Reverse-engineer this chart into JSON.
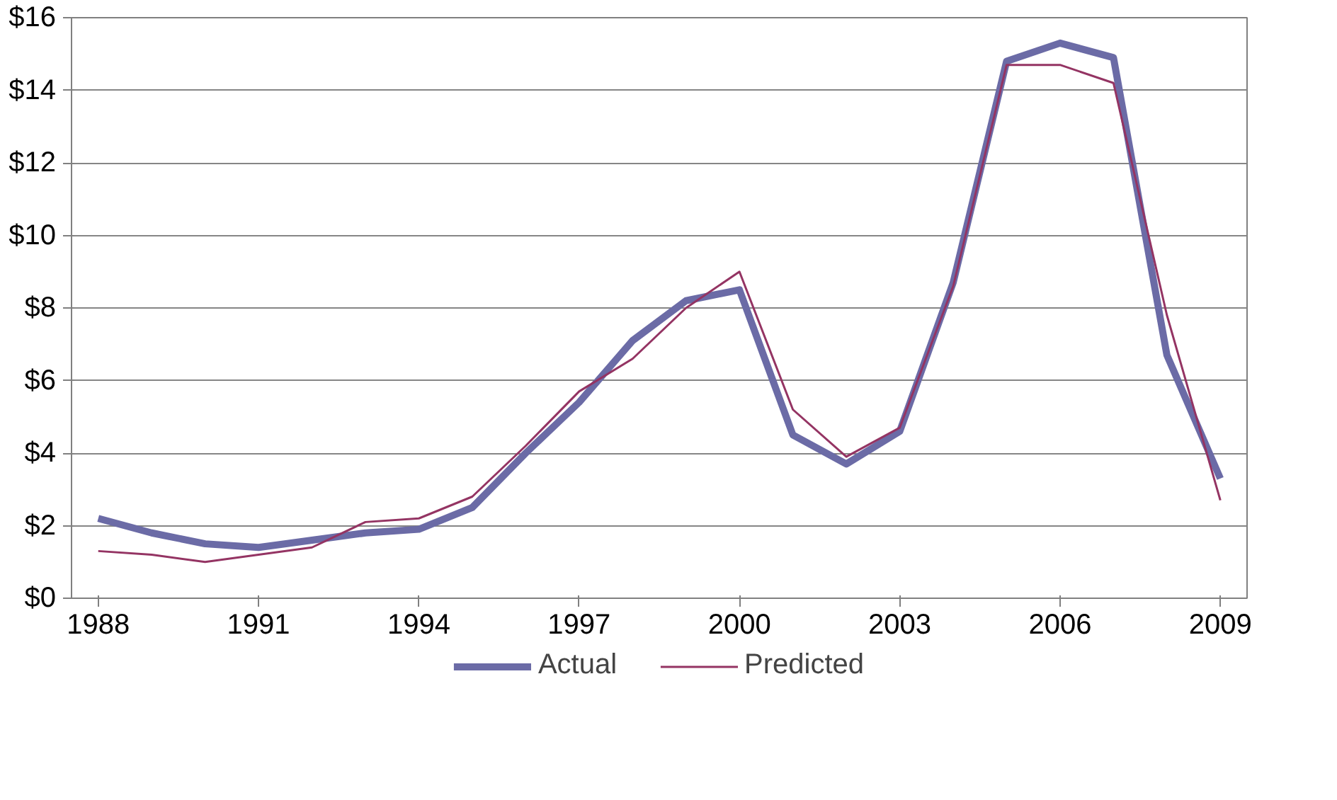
{
  "chart_data": {
    "type": "line",
    "x": [
      1988,
      1989,
      1990,
      1991,
      1992,
      1993,
      1994,
      1995,
      1996,
      1997,
      1998,
      1999,
      2000,
      2001,
      2002,
      2003,
      2004,
      2005,
      2006,
      2007,
      2008,
      2009
    ],
    "series": [
      {
        "name": "Actual",
        "color": "#6b6ba6",
        "values": [
          2.2,
          1.8,
          1.5,
          1.4,
          1.6,
          1.8,
          1.9,
          2.5,
          4.0,
          5.4,
          7.1,
          8.2,
          8.5,
          4.5,
          3.7,
          4.6,
          8.7,
          14.8,
          15.3,
          14.9,
          6.7,
          3.3
        ]
      },
      {
        "name": "Predicted",
        "color": "#943463",
        "values": [
          1.3,
          1.2,
          1.0,
          1.2,
          1.4,
          2.1,
          2.2,
          2.8,
          4.2,
          5.7,
          6.6,
          8.0,
          9.0,
          5.2,
          3.9,
          4.7,
          8.6,
          14.7,
          14.7,
          14.2,
          7.8,
          2.7
        ]
      }
    ],
    "xlim": [
      1987.5,
      2009.5
    ],
    "xticks": [
      1988,
      1991,
      1994,
      1997,
      2000,
      2003,
      2006,
      2009
    ],
    "ylim": [
      0,
      16
    ],
    "yticks": [
      {
        "value": 0,
        "label": "$0"
      },
      {
        "value": 2,
        "label": "$2"
      },
      {
        "value": 4,
        "label": "$4"
      },
      {
        "value": 6,
        "label": "$6"
      },
      {
        "value": 8,
        "label": "$8"
      },
      {
        "value": 10,
        "label": "$10"
      },
      {
        "value": 12,
        "label": "$12"
      },
      {
        "value": 14,
        "label": "$14"
      },
      {
        "value": 16,
        "label": "$16"
      }
    ],
    "grid": "y",
    "legend": "bottom",
    "marker": "none",
    "line_style": "solid"
  }
}
